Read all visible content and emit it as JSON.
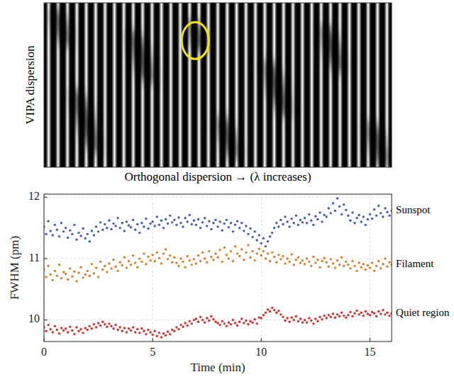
{
  "figure_image": {
    "y_label": "VIPA dispersion",
    "x_label": "Orthogonal dispersion → (λ increases)"
  },
  "chart_data": {
    "type": "scatter",
    "x_label": "Time (min)",
    "y_label": "FWHM (pm)",
    "xlim": [
      0,
      16
    ],
    "xticks": [
      0,
      5,
      10,
      15
    ],
    "ylim": [
      9.65,
      12.05
    ],
    "yticks": [
      10,
      11,
      12
    ],
    "grid": true,
    "legend": "right",
    "marker": "circle",
    "x": [
      0,
      0.1,
      0.2,
      0.3,
      0.4,
      0.5,
      0.6,
      0.7,
      0.8,
      0.9,
      1,
      1.1,
      1.2,
      1.3,
      1.4,
      1.5,
      1.6,
      1.7,
      1.8,
      1.9,
      2,
      2.1,
      2.2,
      2.3,
      2.4,
      2.5,
      2.6,
      2.7,
      2.8,
      2.9,
      3,
      3.1,
      3.2,
      3.3,
      3.4,
      3.5,
      3.6,
      3.7,
      3.8,
      3.9,
      4,
      4.1,
      4.2,
      4.3,
      4.4,
      4.5,
      4.6,
      4.7,
      4.8,
      4.9,
      5,
      5.1,
      5.2,
      5.3,
      5.4,
      5.5,
      5.6,
      5.7,
      5.8,
      5.9,
      6,
      6.1,
      6.2,
      6.3,
      6.4,
      6.5,
      6.6,
      6.7,
      6.8,
      6.9,
      7,
      7.1,
      7.2,
      7.3,
      7.4,
      7.5,
      7.6,
      7.7,
      7.8,
      7.9,
      8,
      8.1,
      8.2,
      8.3,
      8.4,
      8.5,
      8.6,
      8.7,
      8.8,
      8.9,
      9,
      9.1,
      9.2,
      9.3,
      9.4,
      9.5,
      9.6,
      9.7,
      9.8,
      9.9,
      10,
      10.1,
      10.2,
      10.3,
      10.4,
      10.5,
      10.6,
      10.7,
      10.8,
      10.9,
      11,
      11.1,
      11.2,
      11.3,
      11.4,
      11.5,
      11.6,
      11.7,
      11.8,
      11.9,
      12,
      12.1,
      12.2,
      12.3,
      12.4,
      12.5,
      12.6,
      12.7,
      12.8,
      12.9,
      13,
      13.1,
      13.2,
      13.3,
      13.4,
      13.5,
      13.6,
      13.7,
      13.8,
      13.9,
      14,
      14.1,
      14.2,
      14.3,
      14.4,
      14.5,
      14.6,
      14.7,
      14.8,
      14.9,
      15,
      15.1,
      15.2,
      15.3,
      15.4,
      15.5,
      15.6,
      15.7,
      15.8,
      15.9,
      16
    ],
    "series": [
      {
        "name": "Sunspot",
        "color": "#3b5cb8",
        "values": [
          11.52,
          11.4,
          11.61,
          11.45,
          11.38,
          11.55,
          11.47,
          11.36,
          11.58,
          11.44,
          11.5,
          11.34,
          11.46,
          11.4,
          11.55,
          11.31,
          11.42,
          11.37,
          11.49,
          11.33,
          11.4,
          11.28,
          11.45,
          11.38,
          11.52,
          11.44,
          11.59,
          11.47,
          11.56,
          11.5,
          11.62,
          11.48,
          11.57,
          11.53,
          11.66,
          11.5,
          11.58,
          11.45,
          11.6,
          11.54,
          11.51,
          11.63,
          11.47,
          11.56,
          11.42,
          11.58,
          11.52,
          11.65,
          11.49,
          11.57,
          11.6,
          11.53,
          11.68,
          11.55,
          11.62,
          11.5,
          11.64,
          11.57,
          11.7,
          11.59,
          11.63,
          11.55,
          11.67,
          11.58,
          11.52,
          11.66,
          11.6,
          11.71,
          11.56,
          11.62,
          11.55,
          11.64,
          11.5,
          11.59,
          11.66,
          11.53,
          11.61,
          11.48,
          11.58,
          11.63,
          11.52,
          11.6,
          11.46,
          11.57,
          11.63,
          11.51,
          11.58,
          11.44,
          11.55,
          11.61,
          11.5,
          11.58,
          11.45,
          11.53,
          11.4,
          11.49,
          11.35,
          11.44,
          11.3,
          11.38,
          11.25,
          11.33,
          11.2,
          11.28,
          11.36,
          11.42,
          11.5,
          11.58,
          11.52,
          11.63,
          11.56,
          11.68,
          11.6,
          11.52,
          11.65,
          11.58,
          11.7,
          11.55,
          11.63,
          11.59,
          11.66,
          11.58,
          11.72,
          11.62,
          11.55,
          11.69,
          11.64,
          11.75,
          11.6,
          11.71,
          11.68,
          11.82,
          11.74,
          11.9,
          11.78,
          11.98,
          11.85,
          11.72,
          11.88,
          11.79,
          11.7,
          11.62,
          11.75,
          11.58,
          11.66,
          11.71,
          11.6,
          11.68,
          11.55,
          11.64,
          11.72,
          11.65,
          11.8,
          11.7,
          11.86,
          11.74,
          11.68,
          11.82,
          11.76,
          11.7,
          11.78
        ]
      },
      {
        "name": "Filament",
        "color": "#e07b1f",
        "values": [
          10.82,
          10.7,
          10.88,
          10.74,
          10.65,
          10.8,
          10.72,
          10.9,
          10.68,
          10.78,
          10.75,
          10.66,
          10.84,
          10.71,
          10.79,
          10.63,
          10.77,
          10.86,
          10.69,
          10.74,
          10.8,
          10.72,
          10.91,
          10.76,
          10.85,
          10.7,
          10.95,
          10.82,
          10.88,
          10.78,
          10.92,
          10.84,
          10.98,
          10.87,
          10.8,
          10.94,
          10.89,
          11.02,
          10.85,
          10.96,
          10.9,
          11.05,
          10.93,
          10.86,
          11.0,
          10.95,
          11.08,
          10.91,
          11.03,
          10.97,
          11.06,
          10.96,
          11.1,
          11.01,
          10.92,
          11.08,
          11.15,
          10.99,
          11.05,
          10.94,
          11.02,
          10.93,
          10.88,
          11.0,
          10.95,
          10.86,
          11.04,
          10.97,
          10.9,
          10.99,
          10.92,
          11.05,
          10.96,
          11.1,
          11.0,
          10.94,
          11.12,
          11.03,
          10.98,
          11.08,
          11.02,
          11.14,
          10.95,
          11.18,
          11.06,
          11.0,
          11.12,
          10.96,
          11.2,
          11.08,
          11.04,
          11.15,
          10.98,
          11.1,
          11.22,
          11.02,
          11.12,
          10.97,
          11.08,
          11.16,
          11.05,
          11.12,
          11.0,
          11.08,
          10.96,
          11.1,
          11.03,
          10.94,
          11.06,
          10.99,
          11.04,
          10.92,
          11.0,
          10.95,
          11.07,
          10.9,
          10.98,
          11.02,
          10.93,
          10.97,
          10.91,
          11.0,
          10.95,
          10.88,
          11.03,
          10.93,
          10.98,
          10.86,
          10.96,
          11.01,
          10.94,
          10.87,
          10.99,
          10.92,
          10.85,
          10.97,
          10.9,
          11.02,
          10.88,
          10.95,
          10.9,
          10.84,
          10.96,
          10.88,
          10.8,
          10.93,
          10.86,
          10.91,
          10.82,
          10.89,
          10.85,
          10.93,
          10.8,
          10.88,
          10.96,
          10.84,
          10.91,
          11.0,
          10.87,
          10.94,
          10.9
        ]
      },
      {
        "name": "Quiet region",
        "color": "#e02828",
        "values": [
          9.88,
          9.82,
          9.92,
          9.85,
          9.8,
          9.9,
          9.84,
          9.78,
          9.87,
          9.83,
          9.86,
          9.8,
          9.89,
          9.83,
          9.77,
          9.88,
          9.82,
          9.85,
          9.79,
          9.87,
          9.84,
          9.9,
          9.86,
          9.93,
          9.88,
          9.95,
          9.91,
          9.97,
          9.93,
          9.89,
          9.94,
          9.9,
          9.86,
          9.92,
          9.84,
          9.88,
          9.82,
          9.87,
          9.8,
          9.86,
          9.83,
          9.88,
          9.8,
          9.85,
          9.79,
          9.86,
          9.82,
          9.77,
          9.84,
          9.8,
          9.76,
          9.82,
          9.74,
          9.79,
          9.72,
          9.78,
          9.75,
          9.81,
          9.77,
          9.84,
          9.82,
          9.88,
          9.85,
          9.92,
          9.89,
          9.95,
          9.91,
          9.98,
          9.94,
          10.0,
          10.02,
          9.97,
          10.05,
          10.0,
          9.96,
          10.03,
          9.99,
          10.06,
          10.01,
          9.97,
          9.95,
          9.92,
          9.98,
          9.94,
          9.9,
          9.96,
          9.93,
          10.0,
          9.95,
          9.91,
          9.97,
          10.02,
          9.95,
          9.99,
          9.93,
          9.98,
          9.96,
          10.01,
          9.94,
          10.04,
          10.03,
          10.08,
          10.12,
          10.17,
          10.14,
          10.2,
          10.16,
          10.12,
          10.15,
          10.09,
          10.05,
          9.99,
          10.03,
          9.97,
          10.04,
          10.0,
          10.06,
          9.98,
          10.02,
          9.96,
          10.0,
          9.96,
          10.03,
          9.99,
          9.94,
          10.02,
          9.98,
          10.05,
          10.01,
          10.07,
          10.03,
          10.08,
          10.05,
          10.1,
          10.04,
          10.09,
          10.06,
          10.12,
          10.07,
          10.04,
          10.08,
          10.13,
          10.06,
          10.11,
          10.15,
          10.09,
          10.12,
          10.07,
          10.14,
          10.1,
          10.08,
          10.13,
          10.11,
          10.06,
          10.14,
          10.1,
          10.16,
          10.09,
          10.12,
          10.07,
          10.11
        ]
      }
    ]
  }
}
